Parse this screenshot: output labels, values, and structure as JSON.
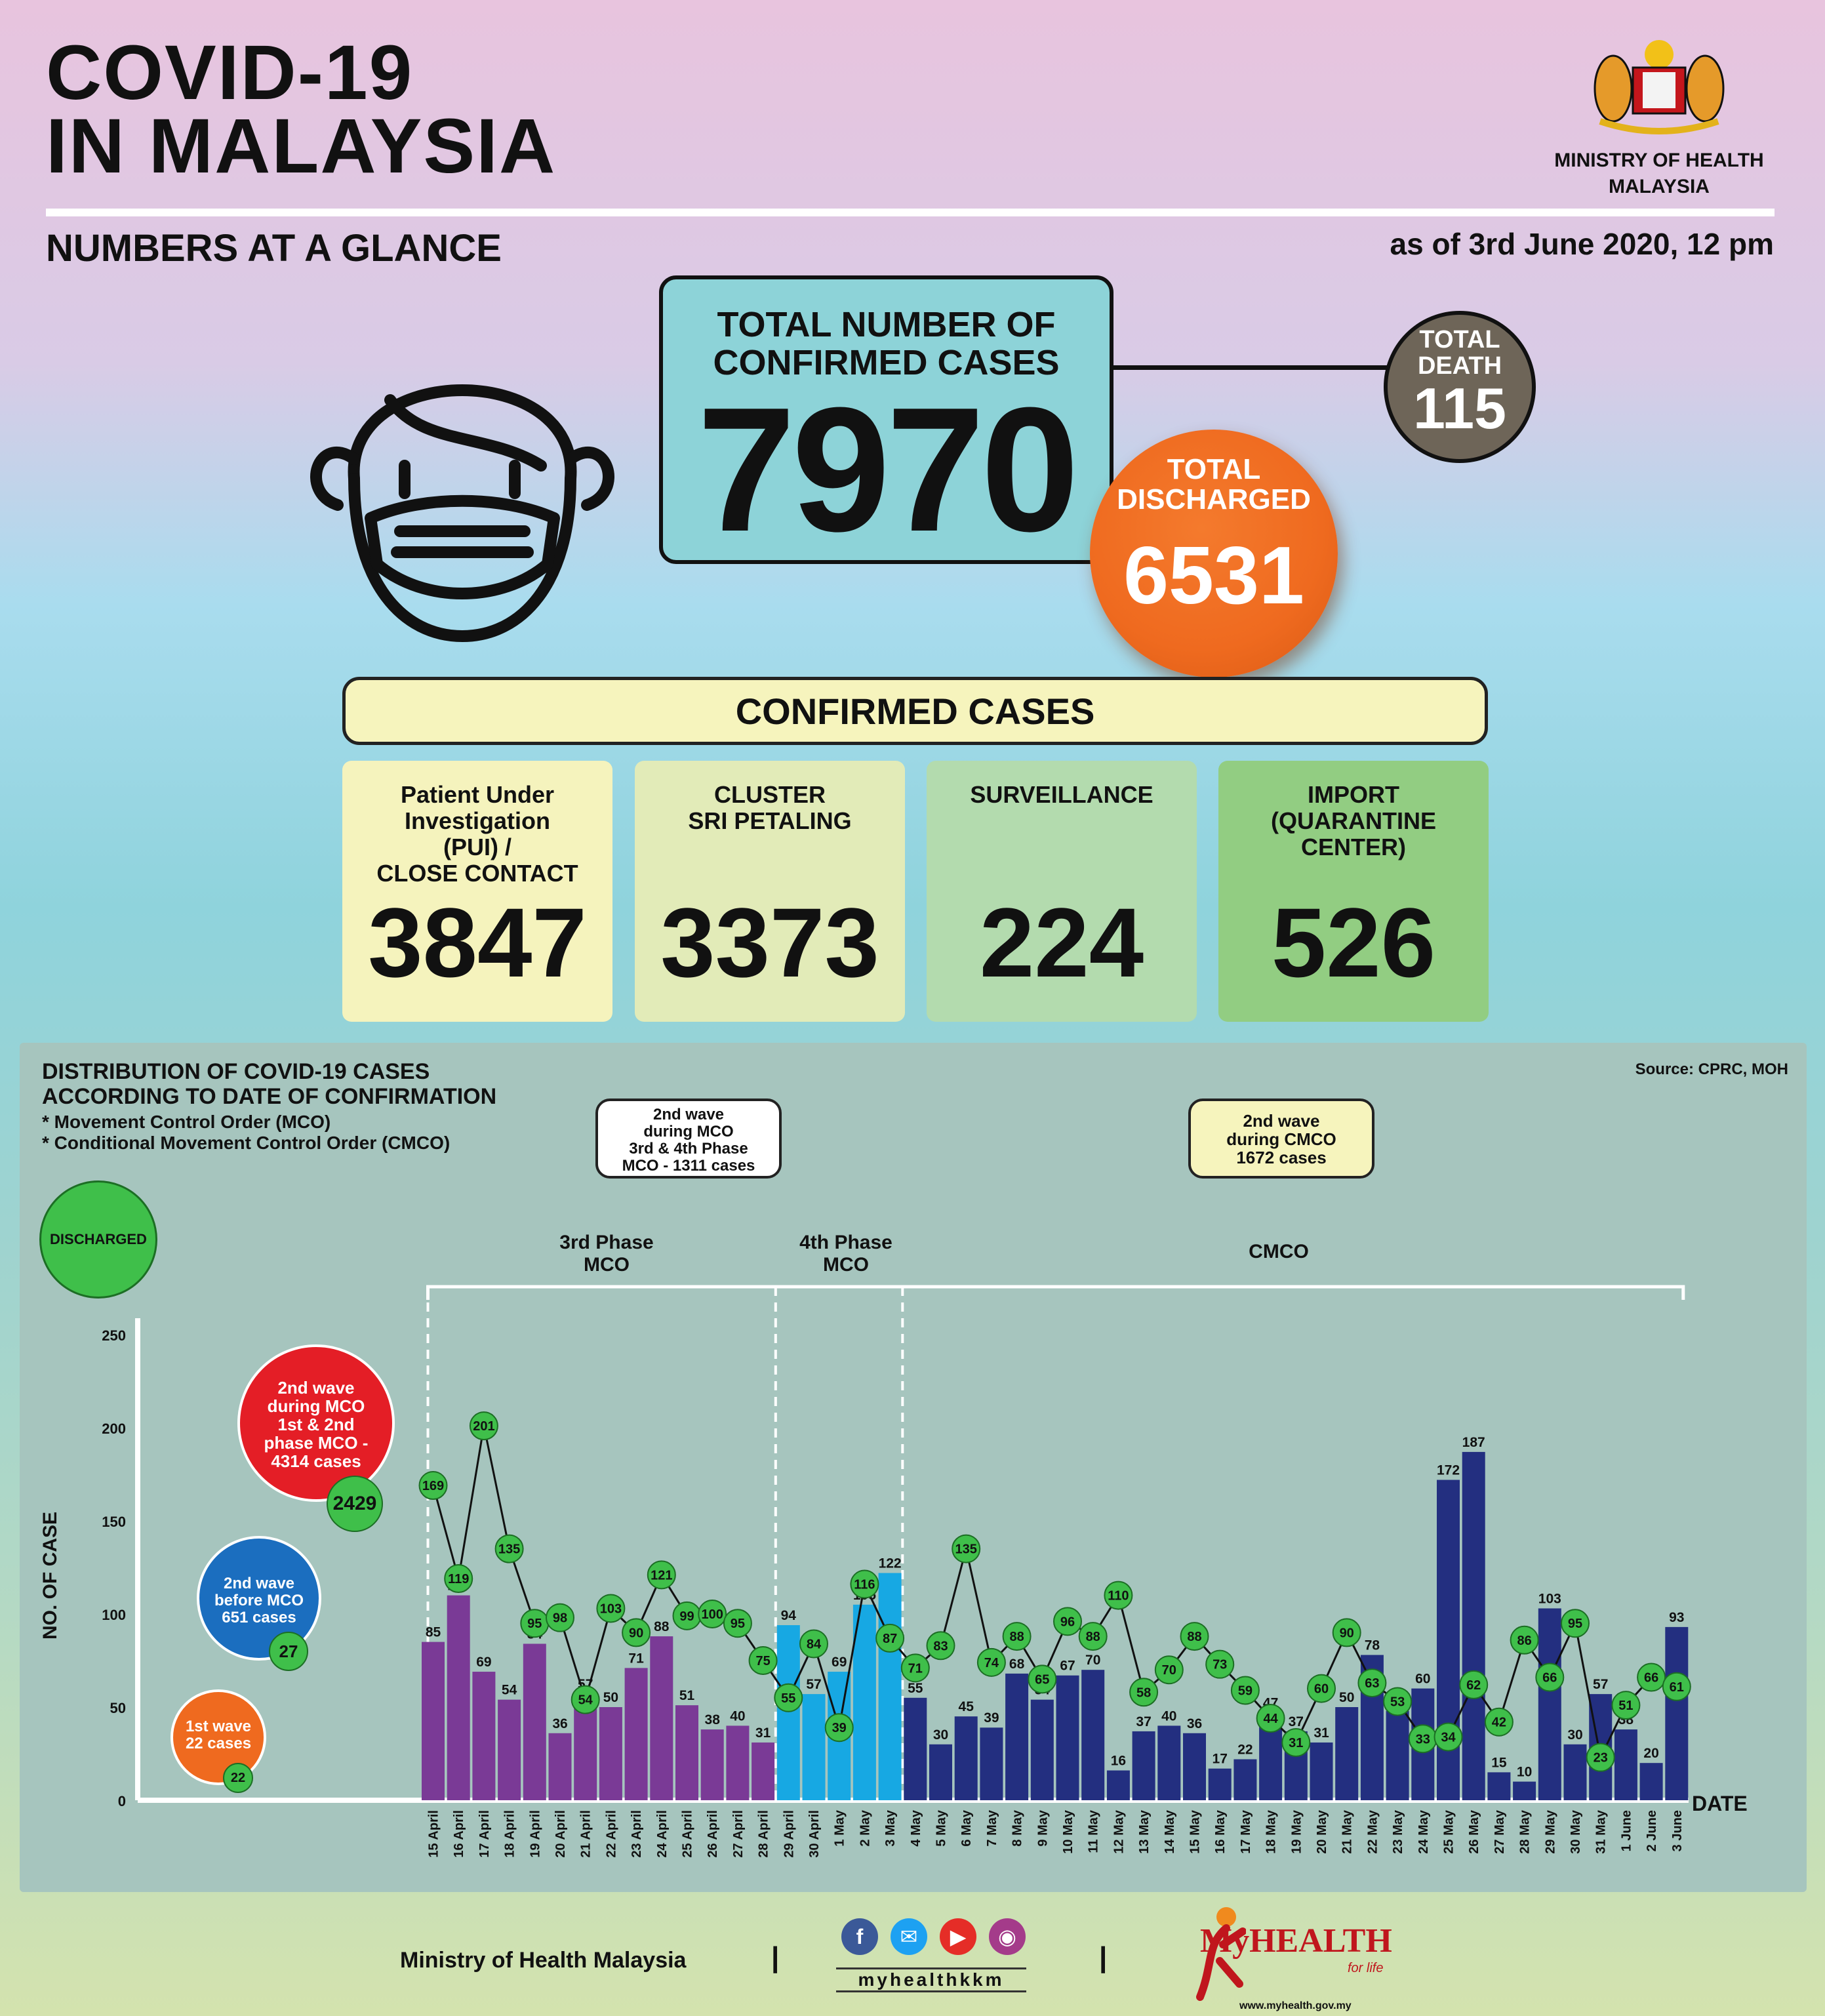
{
  "header": {
    "title_line1": "COVID-19",
    "title_line2": "IN MALAYSIA",
    "subtitle": "NUMBERS AT A GLANCE",
    "as_of": "as of 3rd June 2020, 12 pm",
    "ministry_line1": "MINISTRY OF HEALTH",
    "ministry_line2": "MALAYSIA"
  },
  "totals": {
    "confirmed_label_1": "TOTAL NUMBER OF",
    "confirmed_label_2": "CONFIRMED CASES",
    "confirmed": "7970",
    "death_label_1": "TOTAL",
    "death_label_2": "DEATH",
    "death": "115",
    "discharged_label_1": "TOTAL",
    "discharged_label_2": "DISCHARGED",
    "discharged": "6531"
  },
  "confirmed_cases": {
    "heading": "CONFIRMED CASES",
    "cards": [
      {
        "label": "Patient Under\nInvestigation\n(PUI) /\nCLOSE CONTACT",
        "value": "3847",
        "color": "#f5f3bd"
      },
      {
        "label": "CLUSTER\nSRI PETALING",
        "value": "3373",
        "color": "#e2ebb8"
      },
      {
        "label": "SURVEILLANCE",
        "value": "224",
        "color": "#b3dbae"
      },
      {
        "label": "IMPORT\n(QUARANTINE\nCENTER)",
        "value": "526",
        "color": "#92cd82"
      }
    ]
  },
  "chart_text": {
    "title_1": "DISTRIBUTION OF COVID-19 CASES",
    "title_2": "ACCORDING TO DATE OF CONFIRMATION",
    "note_1": "* Movement Control Order (MCO)",
    "note_2": "* Conditional Movement Control Order (CMCO)",
    "source": "Source: CPRC, MOH",
    "legend_discharged": "DISCHARGED",
    "ann_mco": "2nd wave\nduring MCO\n3rd & 4th Phase\nMCO - 1311 cases",
    "ann_cmco": "2nd wave\nduring CMCO\n1672 cases",
    "phase3": "3rd Phase\nMCO",
    "phase4": "4th Phase\nMCO",
    "cmco": "CMCO",
    "wave_mco12": "2nd wave\nduring MCO\n1st & 2nd\nphase MCO -\n4314 cases",
    "wave_mco12_disc": "2429",
    "wave_before": "2nd wave\nbefore MCO\n651 cases",
    "wave_before_disc": "27",
    "wave1": "1st wave\n22 cases",
    "wave1_disc": "22",
    "ylabel": "NO. OF CASE",
    "xlabel": "DATE"
  },
  "chart_data": {
    "type": "bar",
    "ylabel": "NO. OF CASE",
    "xlabel": "DATE",
    "ylim": [
      0,
      250
    ],
    "yticks": [
      0,
      50,
      100,
      150,
      200,
      250
    ],
    "categories": [
      "15 April",
      "16 April",
      "17 April",
      "18 April",
      "19 April",
      "20 April",
      "21 April",
      "22 April",
      "23 April",
      "24 April",
      "25 April",
      "26 April",
      "27 April",
      "28 April",
      "29 April",
      "30 April",
      "1 May",
      "2 May",
      "3 May",
      "4 May",
      "5 May",
      "6 May",
      "7 May",
      "8 May",
      "9 May",
      "10 May",
      "11 May",
      "12 May",
      "13 May",
      "14 May",
      "15 May",
      "16 May",
      "17 May",
      "18 May",
      "19 May",
      "20 May",
      "21 May",
      "22 May",
      "23 May",
      "24 May",
      "25 May",
      "26 May",
      "27 May",
      "28 May",
      "29 May",
      "30 May",
      "31 May",
      "1 June",
      "2 June",
      "3 June"
    ],
    "series": [
      {
        "values": [
          85,
          110,
          69,
          54,
          84,
          36,
          57,
          50,
          71,
          88,
          51,
          38,
          40,
          31,
          94,
          57,
          69,
          105,
          122,
          55,
          30,
          45,
          39,
          68,
          54,
          67,
          70,
          16,
          37,
          40,
          36,
          17,
          22,
          47,
          37,
          31,
          50,
          78,
          48,
          60,
          172,
          187,
          15,
          10,
          103,
          30,
          57,
          38,
          20,
          93
        ]
      },
      {
        "name": "DISCHARGED",
        "values": [
          169,
          119,
          201,
          135,
          95,
          98,
          54,
          103,
          90,
          121,
          99,
          100,
          95,
          75,
          55,
          84,
          39,
          116,
          87,
          71,
          83,
          135,
          74,
          88,
          65,
          96,
          88,
          110,
          58,
          70,
          88,
          73,
          59,
          44,
          31,
          60,
          90,
          63,
          53,
          33,
          34,
          62,
          42,
          86,
          66,
          95,
          23,
          51,
          66,
          61
        ]
      }
    ],
    "phase_colors": {
      "3rd Phase MCO": "#7a3a96",
      "4th Phase MCO": "#17a8e3",
      "CMCO": "#232f80"
    }
  },
  "footer": {
    "ministry": "Ministry of Health Malaysia",
    "sep": "|",
    "handle": "myhealthkkm",
    "brand": "MyHEALTH",
    "brand_sub": "for life",
    "url": "www.myhealth.gov.my",
    "social_icons": [
      "facebook-icon",
      "twitter-icon",
      "youtube-icon",
      "instagram-icon"
    ]
  }
}
